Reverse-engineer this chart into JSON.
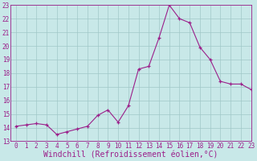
{
  "x": [
    0,
    1,
    2,
    3,
    4,
    5,
    6,
    7,
    8,
    9,
    10,
    11,
    12,
    13,
    14,
    15,
    16,
    17,
    18,
    19,
    20,
    21,
    22,
    23
  ],
  "y": [
    14.1,
    14.2,
    14.3,
    14.2,
    13.5,
    13.7,
    13.9,
    14.1,
    14.9,
    15.3,
    14.4,
    15.6,
    18.3,
    18.5,
    20.6,
    23.0,
    22.0,
    21.7,
    19.9,
    19.0,
    17.4,
    17.2,
    17.2,
    16.8
  ],
  "line_color": "#9B1F8A",
  "marker": "+",
  "marker_color": "#9B1F8A",
  "bg_color": "#c8e8e8",
  "grid_color": "#a0c8c8",
  "xlabel": "Windchill (Refroidissement éolien,°C)",
  "xlabel_color": "#9B1F8A",
  "ylim": [
    13,
    23
  ],
  "xlim": [
    -0.5,
    23
  ],
  "yticks": [
    13,
    14,
    15,
    16,
    17,
    18,
    19,
    20,
    21,
    22,
    23
  ],
  "xticks": [
    0,
    1,
    2,
    3,
    4,
    5,
    6,
    7,
    8,
    9,
    10,
    11,
    12,
    13,
    14,
    15,
    16,
    17,
    18,
    19,
    20,
    21,
    22,
    23
  ],
  "tick_color": "#9B1F8A",
  "axis_color": "#9B1F8A",
  "tick_fontsize": 5.5,
  "xlabel_fontsize": 7.0
}
